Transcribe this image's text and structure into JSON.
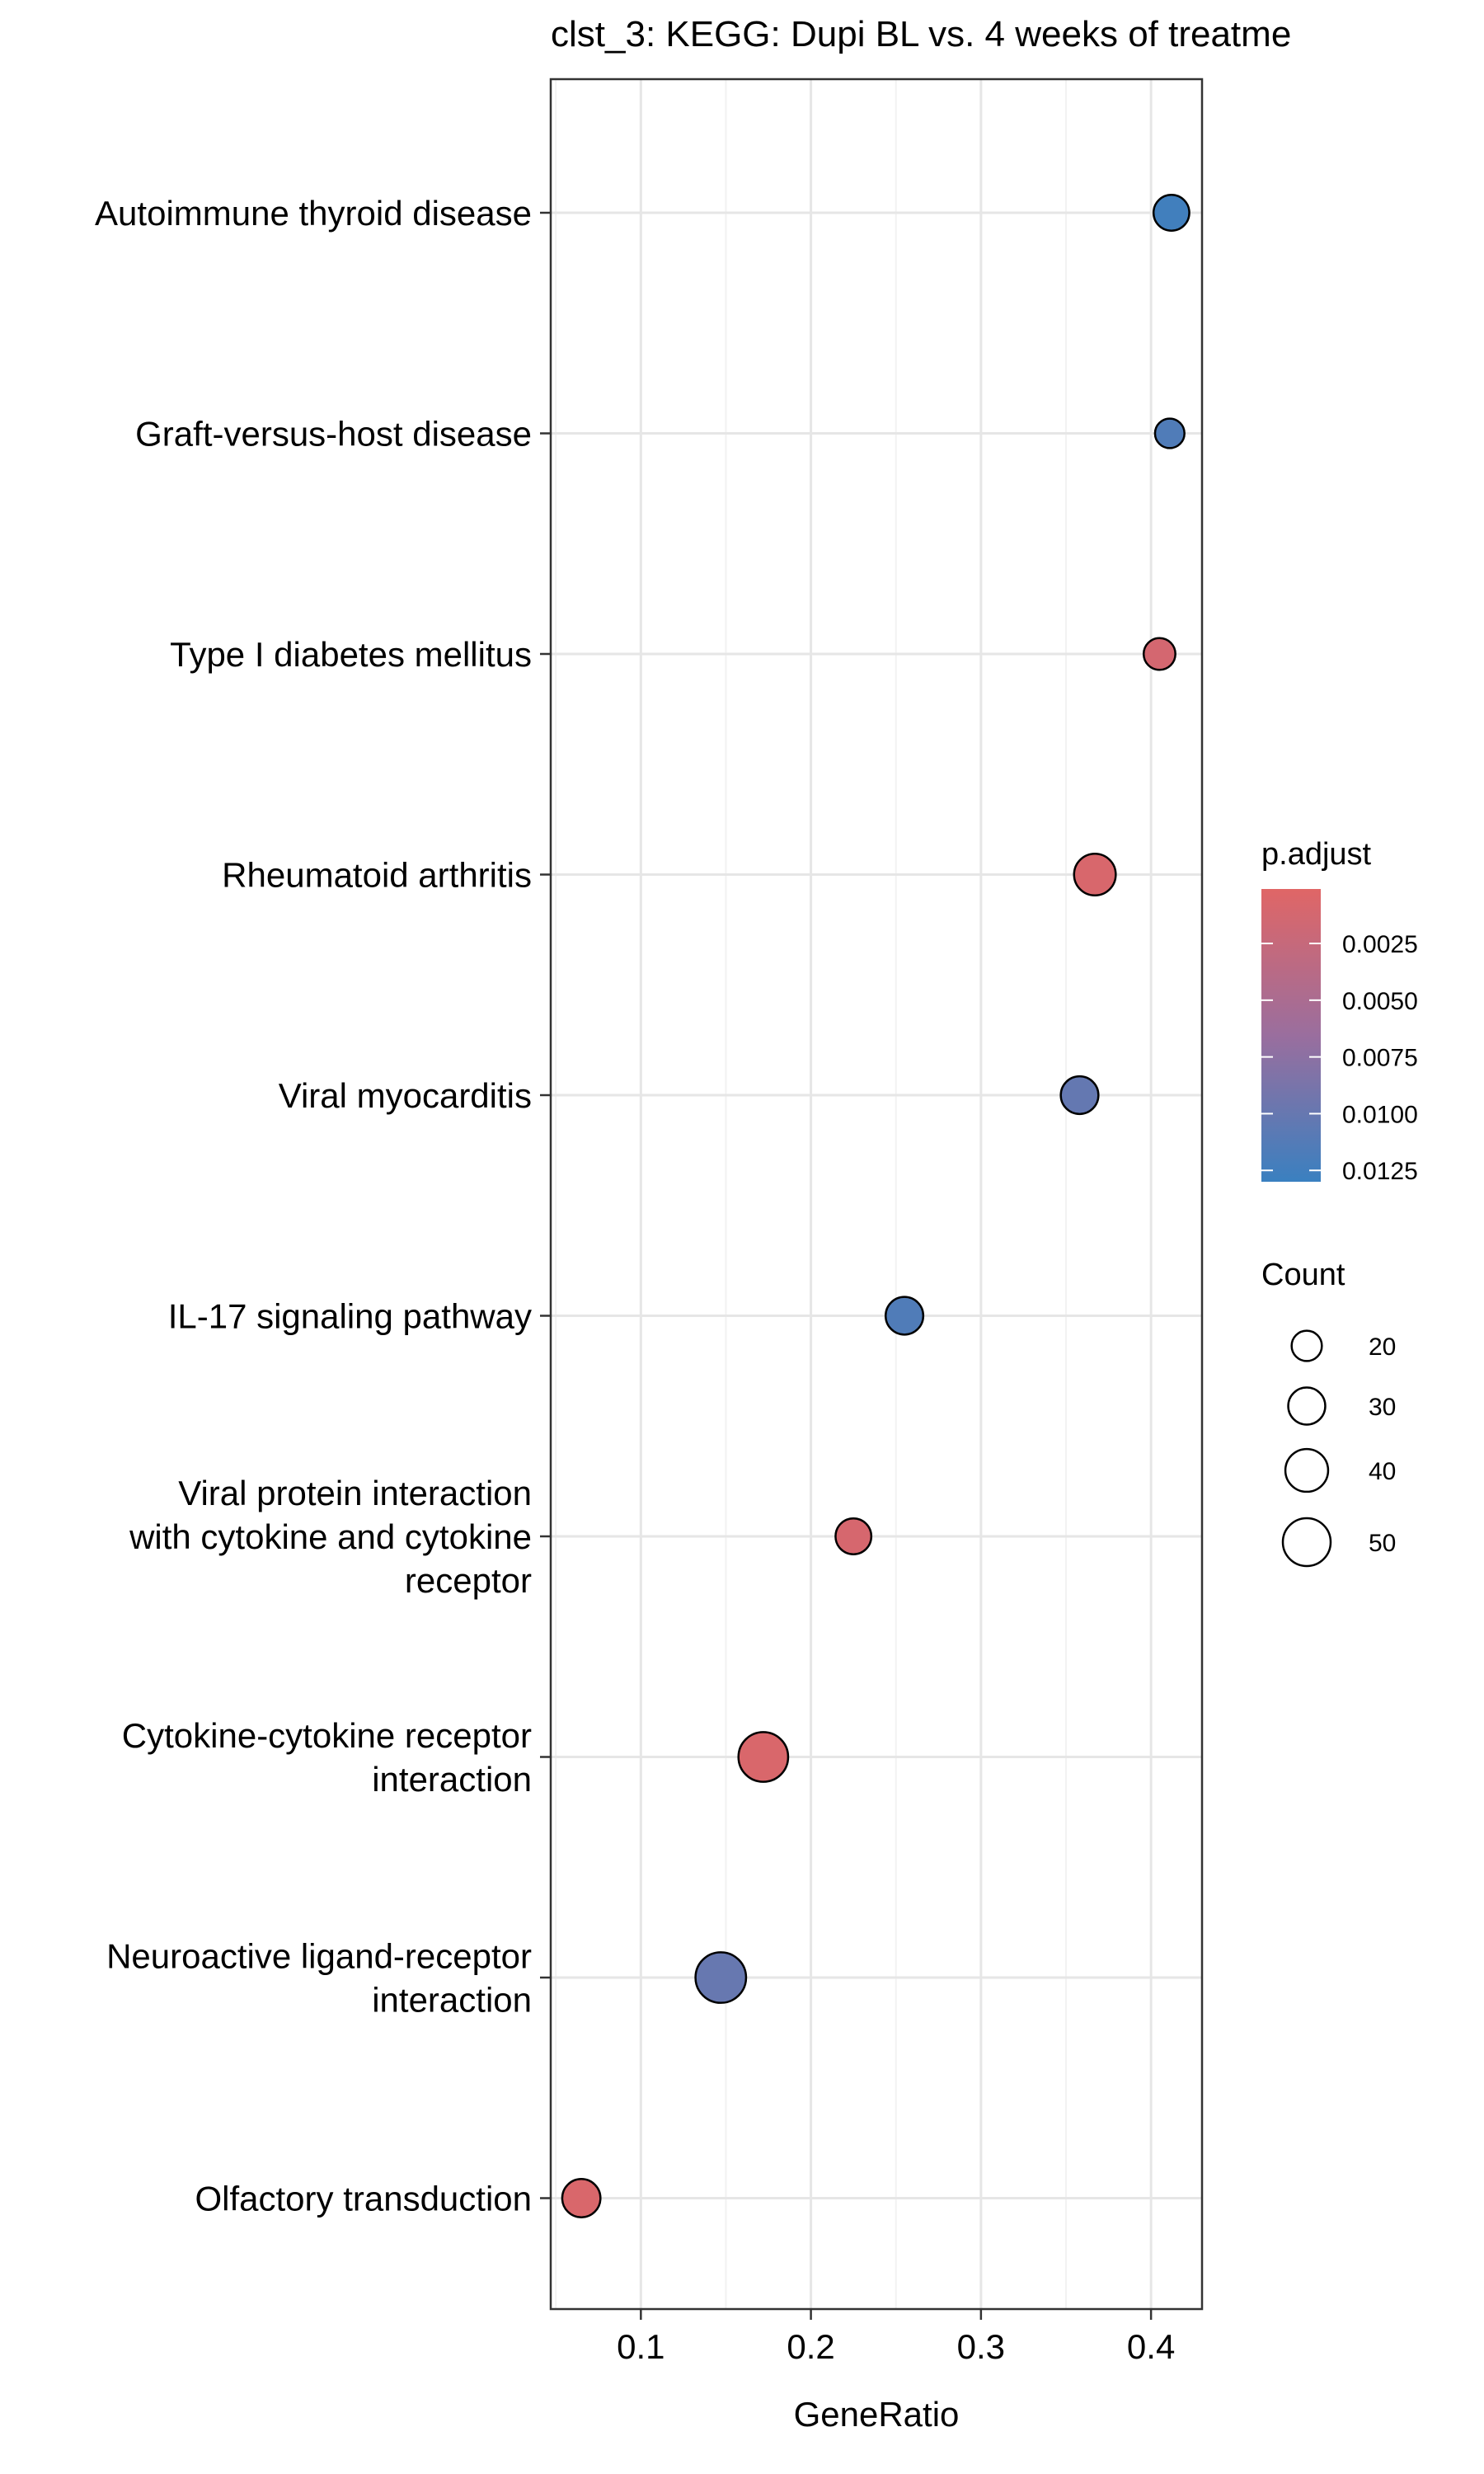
{
  "chart_data": {
    "type": "scatter",
    "title": "clst_3: KEGG: Dupi BL vs. 4 weeks of treatme",
    "xlabel": "GeneRatio",
    "ylabel": "",
    "xlim": [
      0.047,
      0.43
    ],
    "xticks": [
      "0.1",
      "0.2",
      "0.3",
      "0.4"
    ],
    "xtick_values": [
      0.1,
      0.2,
      0.3,
      0.4
    ],
    "grid": true,
    "legend_placement": "right",
    "color_scale": {
      "title": "p.adjust",
      "labels": [
        "0.0025",
        "0.0050",
        "0.0075",
        "0.0100",
        "0.0125"
      ],
      "values": [
        0.0025,
        0.005,
        0.0075,
        0.01,
        0.0125
      ],
      "range": [
        0.0001,
        0.013
      ],
      "low_color": "#E06666",
      "high_color": "#3A80C0"
    },
    "size_scale": {
      "title": "Count",
      "labels": [
        "20",
        "30",
        "40",
        "50"
      ],
      "values": [
        20,
        30,
        40,
        50
      ]
    },
    "points": [
      {
        "term": [
          "Autoimmune thyroid disease"
        ],
        "x": 0.412,
        "count": 28,
        "p_adjust": 0.0125
      },
      {
        "term": [
          "Graft-versus-host disease"
        ],
        "x": 0.411,
        "count": 19,
        "p_adjust": 0.0115
      },
      {
        "term": [
          "Type I diabetes mellitus"
        ],
        "x": 0.405,
        "count": 22,
        "p_adjust": 0.0012
      },
      {
        "term": [
          "Rheumatoid arthritis"
        ],
        "x": 0.367,
        "count": 38,
        "p_adjust": 0.0008
      },
      {
        "term": [
          "Viral myocarditis"
        ],
        "x": 0.358,
        "count": 31,
        "p_adjust": 0.0102
      },
      {
        "term": [
          "IL-17 signaling pathway"
        ],
        "x": 0.255,
        "count": 31,
        "p_adjust": 0.0115
      },
      {
        "term": [
          "Viral protein interaction",
          "with cytokine and cytokine",
          "receptor"
        ],
        "x": 0.225,
        "count": 28,
        "p_adjust": 0.001
      },
      {
        "term": [
          "Cytokine-cytokine receptor",
          "interaction"
        ],
        "x": 0.172,
        "count": 54,
        "p_adjust": 0.0007
      },
      {
        "term": [
          "Neuroactive ligand-receptor",
          "interaction"
        ],
        "x": 0.147,
        "count": 56,
        "p_adjust": 0.01
      },
      {
        "term": [
          "Olfactory transduction"
        ],
        "x": 0.065,
        "count": 32,
        "p_adjust": 0.0007
      }
    ]
  }
}
